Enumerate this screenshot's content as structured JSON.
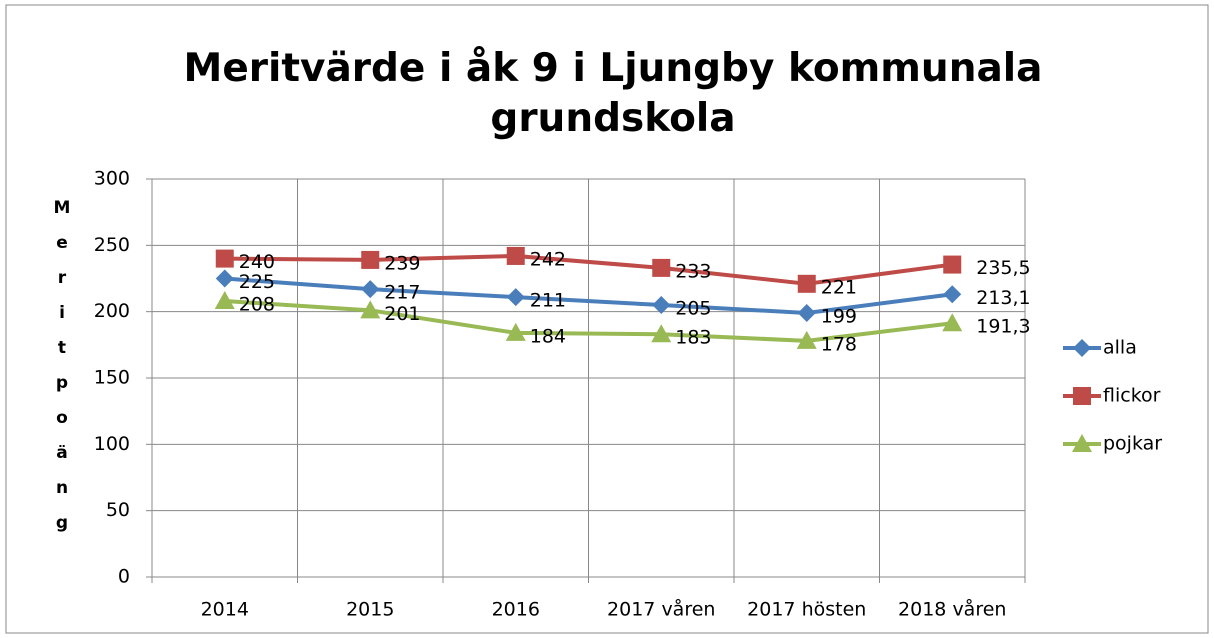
{
  "chart_data": {
    "type": "line",
    "title": "Meritvärde i åk 9 i Ljungby kommunala grundskola",
    "y_label": "Meritpoäng",
    "categories": [
      "2014",
      "2015",
      "2016",
      "2017 våren",
      "2017 hösten",
      "2018 våren"
    ],
    "series": [
      {
        "name": "alla",
        "color": "#4a7ebb",
        "marker": "diamond",
        "values": [
          225,
          217,
          211,
          205,
          199,
          213.1
        ],
        "value_labels": [
          "225",
          "217",
          "211",
          "205",
          "199",
          "213,1"
        ]
      },
      {
        "name": "flickor",
        "color": "#be4b48",
        "marker": "square",
        "values": [
          240,
          239,
          242,
          233,
          221,
          235.5
        ],
        "value_labels": [
          "240",
          "239",
          "242",
          "233",
          "221",
          "235,5"
        ]
      },
      {
        "name": "pojkar",
        "color": "#98b954",
        "marker": "triangle",
        "values": [
          208,
          201,
          184,
          183,
          178,
          191.3
        ],
        "value_labels": [
          "208",
          "201",
          "184",
          "183",
          "178",
          "191,3"
        ]
      }
    ],
    "ylim": [
      0,
      300
    ],
    "yticks": [
      0,
      50,
      100,
      150,
      200,
      250,
      300
    ],
    "grid": true,
    "legend": "right"
  }
}
